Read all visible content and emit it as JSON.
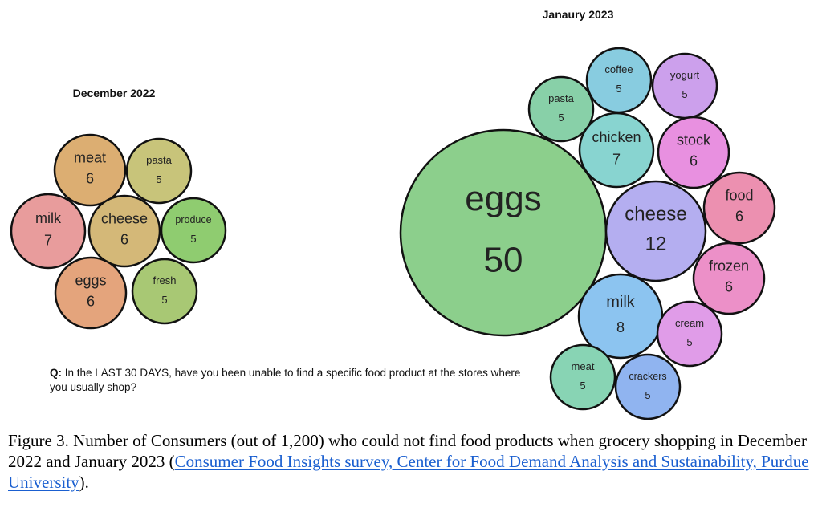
{
  "chart_data": [
    {
      "type": "bubble",
      "title": "December 2022",
      "bubbles": [
        {
          "label": "meat",
          "value": 6,
          "color": "#dcae72"
        },
        {
          "label": "pasta",
          "value": 5,
          "color": "#c8c47a"
        },
        {
          "label": "milk",
          "value": 7,
          "color": "#e89c9c"
        },
        {
          "label": "cheese",
          "value": 6,
          "color": "#d4b878"
        },
        {
          "label": "produce",
          "value": 5,
          "color": "#8fcc70"
        },
        {
          "label": "eggs",
          "value": 6,
          "color": "#e4a47c"
        },
        {
          "label": "fresh",
          "value": 5,
          "color": "#a8c874"
        }
      ]
    },
    {
      "type": "bubble",
      "title": "Janaury 2023",
      "bubbles": [
        {
          "label": "eggs",
          "value": 50,
          "color": "#8ccf8c"
        },
        {
          "label": "pasta",
          "value": 5,
          "color": "#88d0a8"
        },
        {
          "label": "coffee",
          "value": 5,
          "color": "#88cce0"
        },
        {
          "label": "yogurt",
          "value": 5,
          "color": "#cca0ec"
        },
        {
          "label": "chicken",
          "value": 7,
          "color": "#88d4d0"
        },
        {
          "label": "stock",
          "value": 6,
          "color": "#e890e0"
        },
        {
          "label": "cheese",
          "value": 12,
          "color": "#b4aef0"
        },
        {
          "label": "food",
          "value": 6,
          "color": "#ec90b0"
        },
        {
          "label": "frozen",
          "value": 6,
          "color": "#ec90c8"
        },
        {
          "label": "milk",
          "value": 8,
          "color": "#8cc4f0"
        },
        {
          "label": "cream",
          "value": 5,
          "color": "#e09ce8"
        },
        {
          "label": "meat",
          "value": 5,
          "color": "#88d4b4"
        },
        {
          "label": "crackers",
          "value": 5,
          "color": "#90b4f0"
        }
      ]
    }
  ],
  "question": {
    "prefix": "Q:",
    "text": " In the LAST 30 DAYS, have you been unable to find a specific food product at the stores where you usually shop?"
  },
  "caption": {
    "text": "Figure 3. Number of Consumers (out of 1,200) who could not find food products when grocery shopping in December 2022 and January 2023 (",
    "link": "Consumer Food Insights survey, Center for Food Demand Analysis and Sustainability, Purdue University",
    "end": ")."
  }
}
